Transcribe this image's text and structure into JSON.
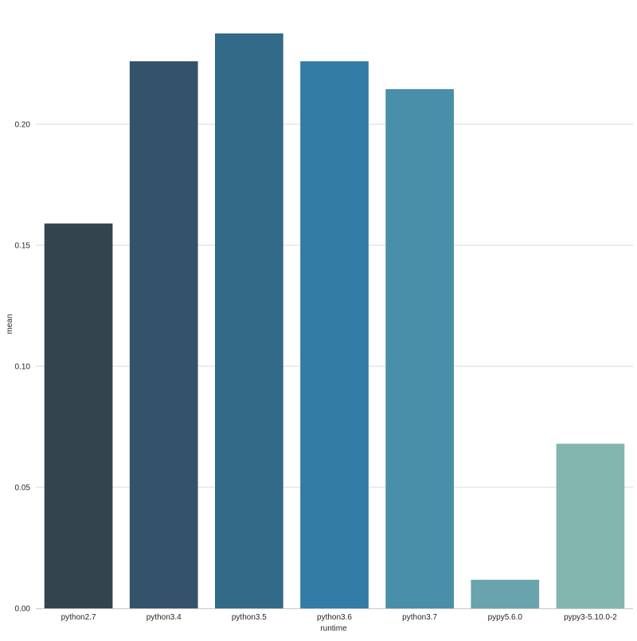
{
  "chart_data": {
    "type": "bar",
    "title": "",
    "xlabel": "runtime",
    "ylabel": "mean",
    "categories": [
      "python2.7",
      "python3.4",
      "python3.5",
      "python3.6",
      "python3.7",
      "pypy5.6.0",
      "pypy3-5.10.0-2"
    ],
    "values": [
      0.159,
      0.226,
      0.2375,
      0.226,
      0.2145,
      0.0118,
      0.068
    ],
    "bar_colors": [
      "#34444f",
      "#33536b",
      "#326a88",
      "#337ca6",
      "#4a8fa9",
      "#68a3ae",
      "#82b6ae"
    ],
    "ylim": [
      0,
      0.2375
    ],
    "yticks": [
      0.0,
      0.05,
      0.1,
      0.15,
      0.2
    ],
    "ytick_labels": [
      "0.00",
      "0.05",
      "0.10",
      "0.15",
      "0.20"
    ],
    "grid": "horizontal",
    "legend": "none",
    "colors": {
      "grid": "#d9d9d9",
      "axis": "#c8c8c8",
      "text": "#262626",
      "background": "#ffffff"
    }
  }
}
